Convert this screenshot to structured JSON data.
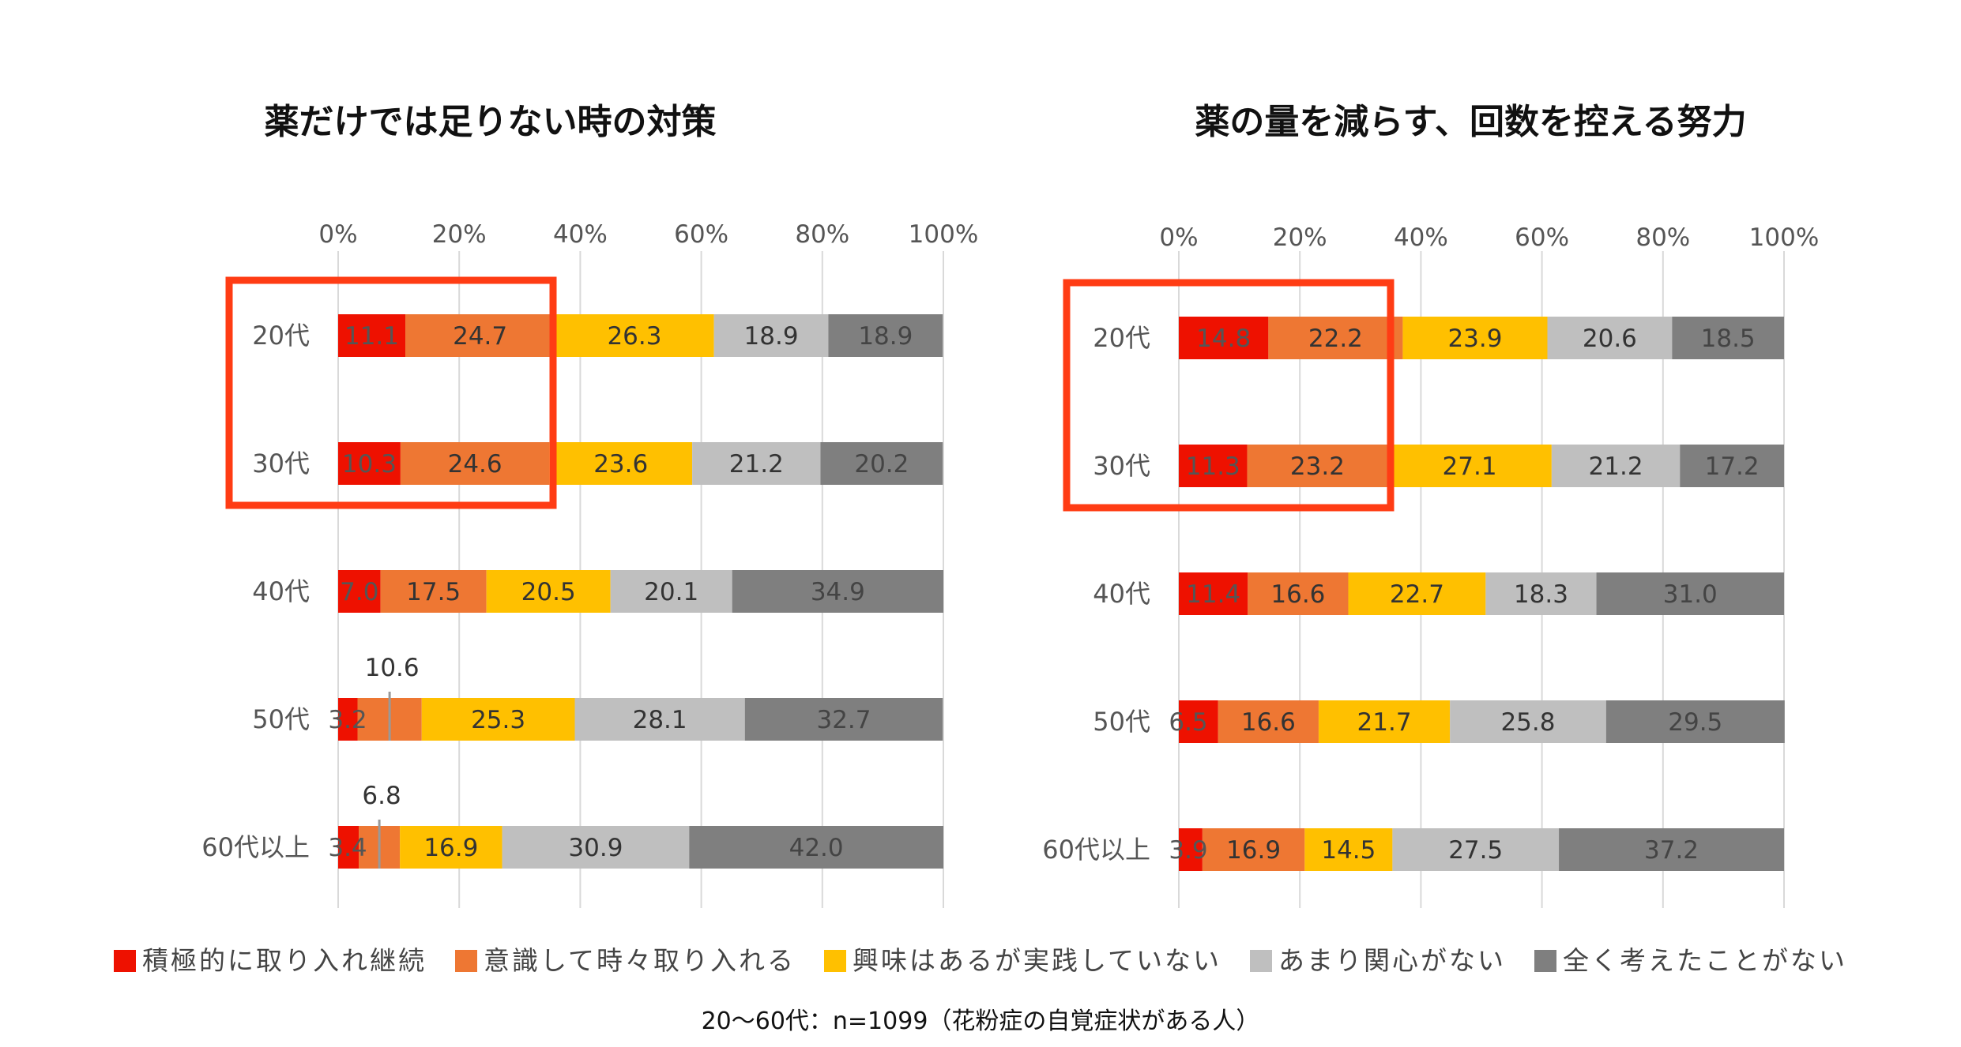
{
  "chart_data": [
    {
      "type": "bar",
      "orientation": "horizontal-stacked-100",
      "title": "薬だけでは足りない時の対策",
      "categories": [
        "20代",
        "30代",
        "40代",
        "50代",
        "60代以上"
      ],
      "xticks": [
        "0%",
        "20%",
        "40%",
        "60%",
        "80%",
        "100%"
      ],
      "xlim": [
        0,
        100
      ],
      "grid": "vertical",
      "series": [
        {
          "name": "積極的に取り入れ継続",
          "values": [
            11.1,
            10.3,
            7.0,
            3.2,
            3.4
          ]
        },
        {
          "name": "意識して時々取り入れる",
          "values": [
            24.7,
            24.6,
            17.5,
            10.6,
            6.8
          ]
        },
        {
          "name": "興味はあるが実践していない",
          "values": [
            26.3,
            23.6,
            20.5,
            25.3,
            16.9
          ]
        },
        {
          "name": "あまり関心がない",
          "values": [
            18.9,
            21.2,
            20.1,
            28.1,
            30.9
          ]
        },
        {
          "name": "全く考えたことがない",
          "values": [
            18.9,
            20.2,
            34.9,
            32.7,
            42.0
          ]
        }
      ]
    },
    {
      "type": "bar",
      "orientation": "horizontal-stacked-100",
      "title": "薬の量を減らす、回数を控える努力",
      "categories": [
        "20代",
        "30代",
        "40代",
        "50代",
        "60代以上"
      ],
      "xticks": [
        "0%",
        "20%",
        "40%",
        "60%",
        "80%",
        "100%"
      ],
      "xlim": [
        0,
        100
      ],
      "grid": "vertical",
      "series": [
        {
          "name": "積極的に取り入れ継続",
          "values": [
            14.8,
            11.3,
            11.4,
            6.5,
            3.9
          ]
        },
        {
          "name": "意識して時々取り入れる",
          "values": [
            22.2,
            23.2,
            16.6,
            16.6,
            16.9
          ]
        },
        {
          "name": "興味はあるが実践していない",
          "values": [
            23.9,
            27.1,
            22.7,
            21.7,
            14.5
          ]
        },
        {
          "name": "あまり関心がない",
          "values": [
            20.6,
            21.2,
            18.3,
            25.8,
            27.5
          ]
        },
        {
          "name": "全く考えたことがない",
          "values": [
            18.5,
            17.2,
            31.0,
            29.5,
            37.2
          ]
        }
      ]
    }
  ],
  "legend": [
    {
      "label": "積極的に取り入れ継続",
      "color": "#ee1100"
    },
    {
      "label": "意識して時々取り入れる",
      "color": "#ee7733"
    },
    {
      "label": "興味はあるが実践していない",
      "color": "#ffc000"
    },
    {
      "label": "あまり関心がない",
      "color": "#bfbfbf"
    },
    {
      "label": "全く考えたことがない",
      "color": "#7f7f7f"
    }
  ],
  "highlight_color": "#ff3c14",
  "note": "20〜60代：n=1099（花粉症の自覚症状がある人）"
}
